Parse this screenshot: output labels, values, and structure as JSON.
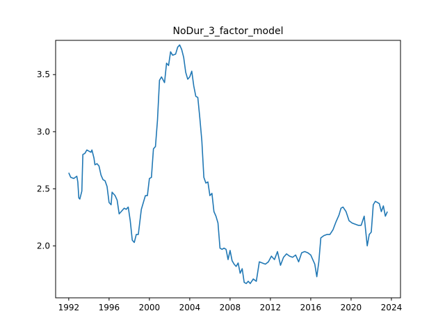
{
  "chart_data": {
    "type": "line",
    "title": "NoDur_3_factor_model",
    "xlabel": "",
    "ylabel": "",
    "xlim": [
      1990.7,
      2024.9
    ],
    "ylim": [
      1.545,
      3.8
    ],
    "grid": false,
    "line_color": "#1f77b4",
    "xticks": [
      1992,
      1996,
      2000,
      2004,
      2008,
      2012,
      2016,
      2020,
      2024
    ],
    "yticks": [
      2.0,
      2.5,
      3.0,
      3.5
    ],
    "ytick_labels": [
      "2.0",
      "2.5",
      "3.0",
      "3.5"
    ],
    "series": [
      {
        "x": [
          1992.0,
          1992.2,
          1992.5,
          1992.8,
          1992.9,
          1993.0,
          1993.1,
          1993.3,
          1993.4,
          1993.6,
          1993.8,
          1994.0,
          1994.2,
          1994.3,
          1994.5,
          1994.6,
          1994.8,
          1995.0,
          1995.2,
          1995.4,
          1995.6,
          1995.8,
          1996.0,
          1996.2,
          1996.3,
          1996.6,
          1996.8,
          1997.0,
          1997.2,
          1997.5,
          1997.7,
          1997.9,
          1998.1,
          1998.3,
          1998.5,
          1998.7,
          1998.9,
          1999.2,
          1999.4,
          1999.6,
          1999.8,
          2000.0,
          2000.2,
          2000.4,
          2000.6,
          2000.8,
          2001.0,
          2001.2,
          2001.5,
          2001.7,
          2001.9,
          2002.1,
          2002.3,
          2002.6,
          2002.8,
          2003.0,
          2003.2,
          2003.4,
          2003.6,
          2003.8,
          2004.0,
          2004.2,
          2004.4,
          2004.6,
          2004.8,
          2005.0,
          2005.2,
          2005.4,
          2005.6,
          2005.8,
          2006.0,
          2006.2,
          2006.4,
          2006.6,
          2006.8,
          2007.0,
          2007.2,
          2007.4,
          2007.6,
          2007.8,
          2008.0,
          2008.2,
          2008.4,
          2008.6,
          2008.8,
          2009.0,
          2009.2,
          2009.4,
          2009.6,
          2009.8,
          2010.0,
          2010.3,
          2010.6,
          2010.9,
          2011.2,
          2011.5,
          2011.8,
          2012.1,
          2012.4,
          2012.7,
          2013.0,
          2013.3,
          2013.6,
          2013.9,
          2014.2,
          2014.5,
          2014.8,
          2015.1,
          2015.4,
          2015.7,
          2016.0,
          2016.2,
          2016.4,
          2016.6,
          2016.8,
          2017.0,
          2017.3,
          2017.6,
          2017.9,
          2018.2,
          2018.5,
          2018.8,
          2019.0,
          2019.2,
          2019.5,
          2019.8,
          2020.1,
          2020.4,
          2020.7,
          2021.0,
          2021.3,
          2021.6,
          2021.8,
          2022.0,
          2022.2,
          2022.4,
          2022.6,
          2022.8,
          2023.0,
          2023.2,
          2023.4,
          2023.6
        ],
        "y": [
          2.64,
          2.6,
          2.59,
          2.61,
          2.56,
          2.42,
          2.41,
          2.48,
          2.8,
          2.81,
          2.84,
          2.83,
          2.82,
          2.84,
          2.77,
          2.71,
          2.72,
          2.7,
          2.62,
          2.58,
          2.57,
          2.52,
          2.38,
          2.36,
          2.47,
          2.44,
          2.4,
          2.28,
          2.3,
          2.33,
          2.32,
          2.34,
          2.22,
          2.05,
          2.03,
          2.1,
          2.1,
          2.32,
          2.38,
          2.44,
          2.44,
          2.59,
          2.6,
          2.85,
          2.87,
          3.1,
          3.45,
          3.48,
          3.43,
          3.6,
          3.58,
          3.7,
          3.67,
          3.68,
          3.74,
          3.76,
          3.72,
          3.65,
          3.52,
          3.46,
          3.48,
          3.53,
          3.4,
          3.31,
          3.3,
          3.12,
          2.92,
          2.6,
          2.55,
          2.56,
          2.44,
          2.46,
          2.3,
          2.26,
          2.2,
          1.98,
          1.97,
          1.98,
          1.97,
          1.88,
          1.96,
          1.87,
          1.84,
          1.82,
          1.85,
          1.76,
          1.8,
          1.68,
          1.67,
          1.69,
          1.67,
          1.71,
          1.69,
          1.86,
          1.85,
          1.84,
          1.86,
          1.91,
          1.88,
          1.95,
          1.83,
          1.9,
          1.93,
          1.91,
          1.9,
          1.92,
          1.86,
          1.94,
          1.95,
          1.94,
          1.92,
          1.88,
          1.84,
          1.73,
          1.86,
          2.07,
          2.09,
          2.1,
          2.1,
          2.14,
          2.21,
          2.27,
          2.33,
          2.34,
          2.3,
          2.22,
          2.2,
          2.19,
          2.18,
          2.18,
          2.26,
          2.0,
          2.1,
          2.12,
          2.36,
          2.39,
          2.38,
          2.37,
          2.3,
          2.35,
          2.26,
          2.3
        ]
      }
    ]
  }
}
